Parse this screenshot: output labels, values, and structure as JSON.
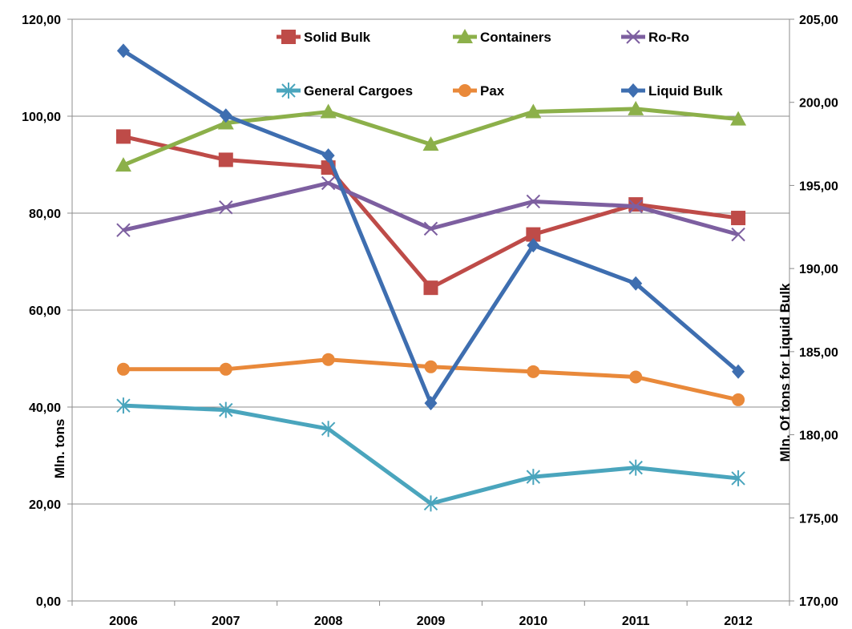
{
  "chart_data": {
    "type": "line",
    "categories": [
      "2006",
      "2007",
      "2008",
      "2009",
      "2010",
      "2011",
      "2012"
    ],
    "y_left": {
      "label": "Mln. tons",
      "range": [
        0,
        120
      ],
      "ticks": [
        "0,00",
        "20,00",
        "40,00",
        "60,00",
        "80,00",
        "100,00",
        "120,00"
      ]
    },
    "y_right": {
      "label": "Mln. Of tons for Liquid Bulk",
      "range": [
        170,
        205
      ],
      "ticks": [
        "170,00",
        "175,00",
        "180,00",
        "185,00",
        "190,00",
        "195,00",
        "200,00",
        "205,00"
      ]
    },
    "grid": true,
    "legend_position": "top",
    "series": [
      {
        "name": "Solid Bulk",
        "axis": "left",
        "color": "#be4b48",
        "marker": "square",
        "values": [
          95.8,
          91.0,
          89.4,
          64.6,
          75.6,
          81.8,
          79.0
        ]
      },
      {
        "name": "Containers",
        "axis": "left",
        "color": "#8cb04a",
        "marker": "triangle",
        "values": [
          89.9,
          98.6,
          100.9,
          94.2,
          100.9,
          101.5,
          99.4
        ]
      },
      {
        "name": "Ro-Ro",
        "axis": "left",
        "color": "#7d5fa0",
        "marker": "x",
        "values": [
          76.5,
          81.2,
          86.2,
          76.8,
          82.4,
          81.4,
          75.6
        ]
      },
      {
        "name": "General Cargoes",
        "axis": "left",
        "color": "#4aa5bd",
        "marker": "asterisk",
        "values": [
          40.3,
          39.4,
          35.5,
          20.1,
          25.6,
          27.5,
          25.3
        ]
      },
      {
        "name": "Pax",
        "axis": "left",
        "color": "#e9893a",
        "marker": "circle",
        "values": [
          47.8,
          47.8,
          49.8,
          48.3,
          47.3,
          46.2,
          41.5
        ]
      },
      {
        "name": "Liquid Bulk",
        "axis": "right",
        "color": "#3e6eb0",
        "marker": "diamond",
        "values": [
          203.1,
          199.2,
          196.8,
          181.9,
          191.4,
          189.1,
          183.8
        ]
      }
    ]
  }
}
